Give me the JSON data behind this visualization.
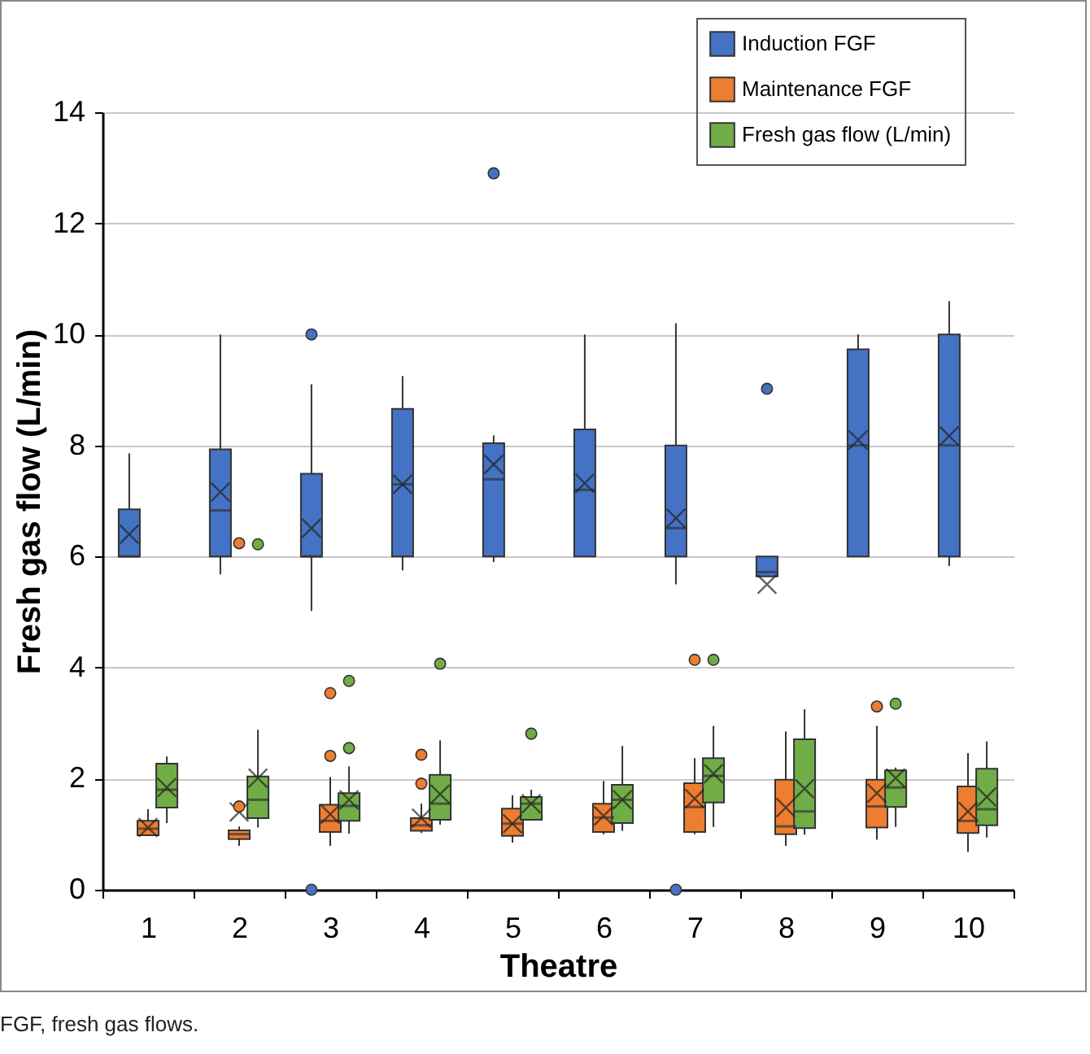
{
  "chart_data": {
    "type": "box",
    "xlabel": "Theatre",
    "ylabel": "Fresh gas flow (L/min)",
    "annotations": [
      "FGF, fresh gas flows."
    ],
    "categories": [
      "1",
      "2",
      "3",
      "4",
      "5",
      "6",
      "7",
      "8",
      "9",
      "10"
    ],
    "ylim": [
      0,
      14
    ],
    "yticks": [
      0,
      2,
      4,
      6,
      8,
      10,
      12,
      14
    ],
    "grid": "y",
    "legend": "top right",
    "series": [
      {
        "name": "Induction FGF",
        "color": "#4472c4",
        "boxes": [
          {
            "low": 6,
            "q1": 6,
            "median": 6,
            "q3": 6.85,
            "high": 7.86,
            "mean": 6.4
          },
          {
            "low": 5.68,
            "q1": 6,
            "median": 6.83,
            "q3": 7.93,
            "high": 10,
            "mean": 7.16
          },
          {
            "low": 5.02,
            "q1": 6,
            "median": 6,
            "q3": 7.49,
            "high": 9.1,
            "mean": 6.51,
            "outliers": [
              10,
              0
            ]
          },
          {
            "low": 5.75,
            "q1": 6,
            "median": 7.3,
            "q3": 8.66,
            "high": 9.25,
            "mean": 7.3
          },
          {
            "low": 5.9,
            "q1": 6,
            "median": 7.39,
            "q3": 8.04,
            "high": 8.18,
            "mean": 7.66,
            "outliers": [
              12.9
            ]
          },
          {
            "low": 6,
            "q1": 6,
            "median": 7.2,
            "q3": 8.29,
            "high": 10,
            "mean": 7.32
          },
          {
            "low": 5.5,
            "q1": 6,
            "median": 6.51,
            "q3": 8,
            "high": 10.2,
            "mean": 6.69,
            "outliers": [
              0
            ]
          },
          {
            "low": 5.64,
            "q1": 5.64,
            "median": 5.72,
            "q3": 6,
            "high": 6,
            "mean": 5.5,
            "outliers": [
              9.02
            ]
          },
          {
            "low": 6,
            "q1": 6,
            "median": 8,
            "q3": 9.73,
            "high": 10,
            "mean": 8.1
          },
          {
            "low": 5.83,
            "q1": 6,
            "median": 8,
            "q3": 10,
            "high": 10.6,
            "mean": 8.17
          }
        ]
      },
      {
        "name": "Maintenance FGF",
        "color": "#ed7d31",
        "boxes": [
          {
            "low": 0.98,
            "q1": 0.98,
            "median": 1.1,
            "q3": 1.24,
            "high": 1.45,
            "mean": 1.12
          },
          {
            "low": 0.79,
            "q1": 0.91,
            "median": 1,
            "q3": 1.07,
            "high": 1.14,
            "mean": 1.4,
            "outliers": [
              1.5,
              6.24
            ]
          },
          {
            "low": 0.79,
            "q1": 1.04,
            "median": 1.24,
            "q3": 1.53,
            "high": 2.03,
            "mean": 1.36,
            "outliers": [
              3.54,
              2.41
            ]
          },
          {
            "low": 1.02,
            "q1": 1.06,
            "median": 1.16,
            "q3": 1.29,
            "high": 1.55,
            "mean": 1.29,
            "outliers": [
              2.43,
              1.91
            ]
          },
          {
            "low": 0.85,
            "q1": 0.97,
            "median": 1.19,
            "q3": 1.46,
            "high": 1.7,
            "mean": 1.19
          },
          {
            "low": 1,
            "q1": 1.04,
            "median": 1.3,
            "q3": 1.55,
            "high": 1.96,
            "mean": 1.33
          },
          {
            "low": 1,
            "q1": 1.04,
            "median": 1.49,
            "q3": 1.92,
            "high": 2.37,
            "mean": 1.64,
            "outliers": [
              4.14
            ]
          },
          {
            "low": 0.79,
            "q1": 1,
            "median": 1.14,
            "q3": 1.98,
            "high": 2.85,
            "mean": 1.48
          },
          {
            "low": 0.9,
            "q1": 1.12,
            "median": 1.5,
            "q3": 1.98,
            "high": 2.95,
            "mean": 1.74,
            "outliers": [
              3.3
            ]
          },
          {
            "low": 0.68,
            "q1": 1.02,
            "median": 1.24,
            "q3": 1.86,
            "high": 2.46,
            "mean": 1.41
          }
        ]
      },
      {
        "name": "Fresh gas flow (L/min)",
        "color": "#70ad47",
        "boxes": [
          {
            "low": 1.2,
            "q1": 1.48,
            "median": 1.8,
            "q3": 2.27,
            "high": 2.4,
            "mean": 1.84
          },
          {
            "low": 1.12,
            "q1": 1.29,
            "median": 1.62,
            "q3": 2.04,
            "high": 2.88,
            "mean": 2.01,
            "outliers": [
              6.22
            ]
          },
          {
            "low": 1.01,
            "q1": 1.24,
            "median": 1.51,
            "q3": 1.74,
            "high": 2.22,
            "mean": 1.62,
            "outliers": [
              3.76,
              2.55
            ]
          },
          {
            "low": 1.17,
            "q1": 1.26,
            "median": 1.55,
            "q3": 2.07,
            "high": 2.69,
            "mean": 1.72,
            "outliers": [
              4.07
            ]
          },
          {
            "low": 1.26,
            "q1": 1.26,
            "median": 1.55,
            "q3": 1.67,
            "high": 1.8,
            "mean": 1.55,
            "outliers": [
              2.81
            ]
          },
          {
            "low": 1.06,
            "q1": 1.2,
            "median": 1.62,
            "q3": 1.89,
            "high": 2.59,
            "mean": 1.62
          },
          {
            "low": 1.13,
            "q1": 1.57,
            "median": 2.05,
            "q3": 2.37,
            "high": 2.95,
            "mean": 2.09,
            "outliers": [
              4.14
            ]
          },
          {
            "low": 0.99,
            "q1": 1.11,
            "median": 1.41,
            "q3": 2.71,
            "high": 3.25,
            "mean": 1.82
          },
          {
            "low": 1.13,
            "q1": 1.49,
            "median": 1.84,
            "q3": 2.15,
            "high": 2.2,
            "mean": 2.01,
            "outliers": [
              3.35
            ]
          },
          {
            "low": 0.94,
            "q1": 1.16,
            "median": 1.45,
            "q3": 2.18,
            "high": 2.67,
            "mean": 1.67
          }
        ]
      }
    ]
  }
}
